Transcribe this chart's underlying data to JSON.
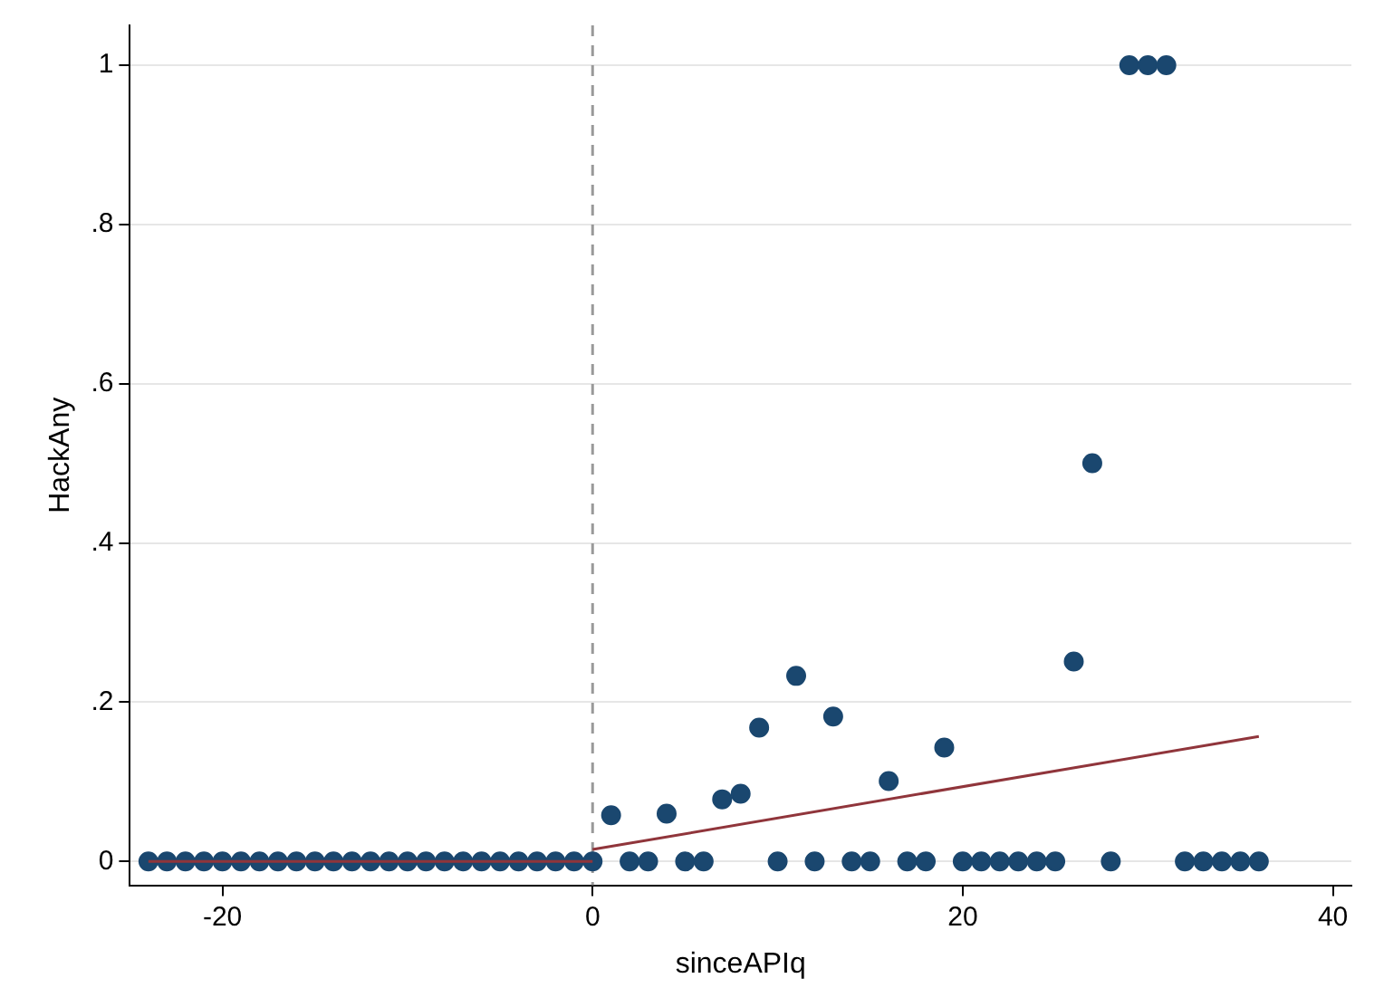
{
  "chart_data": {
    "type": "scatter",
    "xlabel": "sinceAPIq",
    "ylabel": "HackAny",
    "marker": "circle",
    "grid": "y",
    "legend": false,
    "xlim": [
      -25,
      41
    ],
    "xticks": [
      -20,
      0,
      20,
      40
    ],
    "ylim": [
      -0.03,
      1.05
    ],
    "yticks": [
      {
        "value": 0,
        "label": "0"
      },
      {
        "value": 0.2,
        "label": ".2"
      },
      {
        "value": 0.4,
        "label": ".4"
      },
      {
        "value": 0.6,
        "label": ".6"
      },
      {
        "value": 0.8,
        "label": ".8"
      },
      {
        "value": 1,
        "label": "1"
      }
    ],
    "ref_lines": [
      {
        "axis": "x",
        "value": 0,
        "color": "#999999",
        "line_style": "dashed"
      }
    ],
    "series": [
      {
        "color": "#1a476f",
        "x": [
          -24,
          -23,
          -22,
          -21,
          -20,
          -19,
          -18,
          -17,
          -16,
          -15,
          -14,
          -13,
          -12,
          -11,
          -10,
          -9,
          -8,
          -7,
          -6,
          -5,
          -4,
          -3,
          -2,
          -1,
          0,
          1,
          2,
          3,
          4,
          5,
          6,
          7,
          8,
          9,
          10,
          11,
          12,
          13,
          14,
          15,
          16,
          17,
          18,
          19,
          20,
          21,
          22,
          23,
          24,
          25,
          26,
          27,
          28,
          29,
          30,
          31,
          32,
          33,
          34,
          35,
          36
        ],
        "values": [
          0,
          0,
          0,
          0,
          0,
          0,
          0,
          0,
          0,
          0,
          0,
          0,
          0,
          0,
          0,
          0,
          0,
          0,
          0,
          0,
          0,
          0,
          0,
          0,
          0,
          0.058,
          0,
          0,
          0.06,
          0,
          0,
          0.078,
          0.085,
          0.168,
          0,
          0.233,
          0,
          0.182,
          0,
          0,
          0.101,
          0,
          0,
          0.143,
          0,
          0,
          0,
          0,
          0,
          0,
          0.251,
          0.5,
          0,
          1,
          1,
          1,
          0,
          0,
          0,
          0,
          0
        ]
      },
      {
        "type": "line",
        "color": "#90353b",
        "marker": "none",
        "x": [
          -24,
          0
        ],
        "values": [
          0,
          0
        ]
      },
      {
        "type": "line",
        "color": "#90353b",
        "marker": "none",
        "x": [
          0,
          36
        ],
        "values": [
          0.015,
          0.157
        ]
      }
    ]
  }
}
